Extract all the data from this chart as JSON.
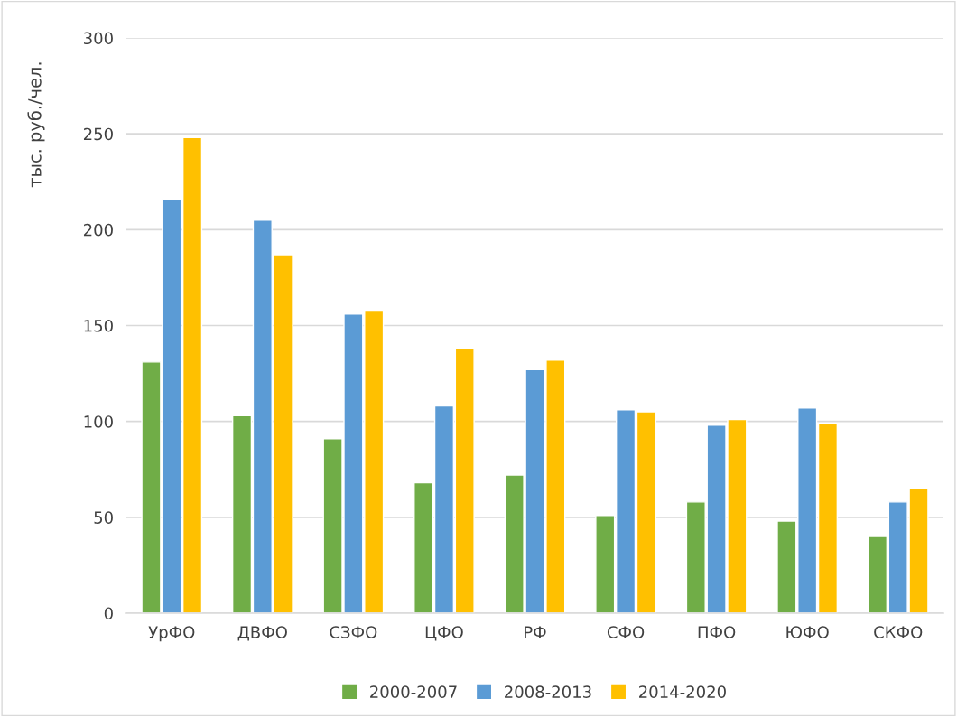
{
  "chart_data": {
    "type": "bar",
    "ylabel": "тыс. руб./чел.",
    "categories": [
      "УрФО",
      "ДВФО",
      "СЗФО",
      "ЦФО",
      "РФ",
      "СФО",
      "ПФО",
      "ЮФО",
      "СКФО"
    ],
    "series": [
      {
        "name": "2000-2007",
        "color": "#70ad47",
        "values": [
          131,
          103,
          91,
          68,
          72,
          51,
          58,
          48,
          40
        ]
      },
      {
        "name": "2008-2013",
        "color": "#5b9bd5",
        "values": [
          216,
          205,
          156,
          108,
          127,
          106,
          98,
          107,
          58
        ]
      },
      {
        "name": "2014-2020",
        "color": "#ffc000",
        "values": [
          248,
          187,
          158,
          138,
          132,
          105,
          101,
          99,
          65
        ]
      }
    ],
    "ylim": [
      0,
      300
    ],
    "yticks": [
      0,
      50,
      100,
      150,
      200,
      250,
      300
    ],
    "grid": "y",
    "legend": "bottom"
  }
}
